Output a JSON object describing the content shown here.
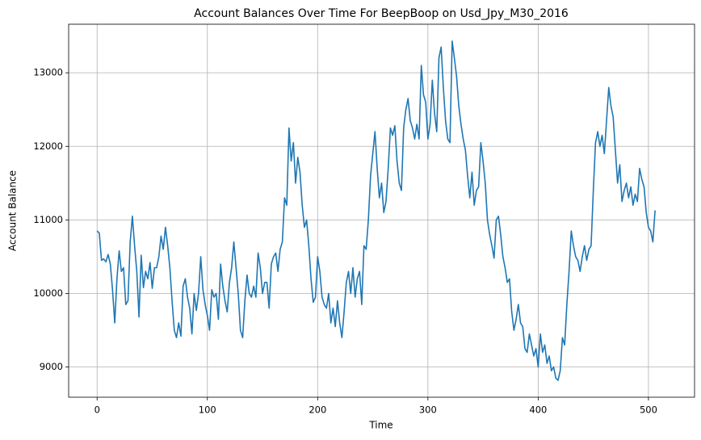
{
  "chart_data": {
    "type": "line",
    "title": "Account Balances Over Time For BeepBoop on Usd_Jpy_M30_2016",
    "x_label": "Time",
    "y_label": "Account Balance",
    "xlim": [
      -25.8,
      541.8
    ],
    "xticks": [
      0,
      100,
      200,
      300,
      400,
      500
    ],
    "ylim": [
      8590,
      13660
    ],
    "yticks": [
      9000,
      10000,
      11000,
      12000,
      13000
    ],
    "grid": true,
    "x": [
      0,
      2,
      4,
      6,
      8,
      10,
      12,
      14,
      16,
      18,
      20,
      22,
      24,
      26,
      28,
      30,
      32,
      34,
      36,
      38,
      40,
      42,
      44,
      46,
      48,
      50,
      52,
      54,
      56,
      58,
      60,
      62,
      64,
      66,
      68,
      70,
      72,
      74,
      76,
      78,
      80,
      82,
      84,
      86,
      88,
      90,
      92,
      94,
      96,
      98,
      100,
      102,
      104,
      106,
      108,
      110,
      112,
      114,
      116,
      118,
      120,
      122,
      124,
      126,
      128,
      130,
      132,
      134,
      136,
      138,
      140,
      142,
      144,
      146,
      148,
      150,
      152,
      154,
      156,
      158,
      160,
      162,
      164,
      166,
      168,
      170,
      172,
      174,
      176,
      178,
      180,
      182,
      184,
      186,
      188,
      190,
      192,
      194,
      196,
      198,
      200,
      202,
      204,
      206,
      208,
      210,
      212,
      214,
      216,
      218,
      220,
      222,
      224,
      226,
      228,
      230,
      232,
      234,
      236,
      238,
      240,
      242,
      244,
      246,
      248,
      250,
      252,
      254,
      256,
      258,
      260,
      262,
      264,
      266,
      268,
      270,
      272,
      274,
      276,
      278,
      280,
      282,
      284,
      286,
      288,
      290,
      292,
      294,
      296,
      298,
      300,
      302,
      304,
      306,
      308,
      310,
      312,
      314,
      316,
      318,
      320,
      322,
      324,
      326,
      328,
      330,
      332,
      334,
      336,
      338,
      340,
      342,
      344,
      346,
      348,
      350,
      352,
      354,
      356,
      358,
      360,
      362,
      364,
      366,
      368,
      370,
      372,
      374,
      376,
      378,
      380,
      382,
      384,
      386,
      388,
      390,
      392,
      394,
      396,
      398,
      400,
      402,
      404,
      406,
      408,
      410,
      412,
      414,
      416,
      418,
      420,
      422,
      424,
      426,
      428,
      430,
      432,
      434,
      436,
      438,
      440,
      442,
      444,
      446,
      448,
      450,
      452,
      454,
      456,
      458,
      460,
      462,
      464,
      466,
      468,
      470,
      472,
      474,
      476,
      478,
      480,
      482,
      484,
      486,
      488,
      490,
      492,
      494,
      496,
      498,
      500,
      502,
      504,
      506
    ],
    "series": [
      {
        "name": "Account Balance",
        "color": "#1f77b4",
        "values": [
          10850,
          10820,
          10450,
          10470,
          10430,
          10530,
          10400,
          10050,
          9600,
          10200,
          10580,
          10300,
          10350,
          9850,
          9900,
          10700,
          11050,
          10650,
          10300,
          9680,
          10520,
          10080,
          10300,
          10200,
          10420,
          10070,
          10350,
          10350,
          10500,
          10780,
          10600,
          10900,
          10650,
          10350,
          9900,
          9500,
          9400,
          9600,
          9420,
          10100,
          10200,
          9950,
          9800,
          9450,
          10000,
          9770,
          10000,
          10500,
          10050,
          9850,
          9700,
          9500,
          10050,
          9950,
          10000,
          9650,
          10400,
          10100,
          9900,
          9750,
          10150,
          10350,
          10700,
          10350,
          10000,
          9500,
          9400,
          9900,
          10250,
          10000,
          9950,
          10100,
          9950,
          10550,
          10350,
          10000,
          10150,
          10150,
          9800,
          10400,
          10500,
          10550,
          10300,
          10600,
          10700,
          11300,
          11200,
          12250,
          11800,
          12050,
          11500,
          11850,
          11650,
          11200,
          10900,
          11000,
          10650,
          10200,
          9880,
          9950,
          10500,
          10300,
          9950,
          9850,
          9800,
          10000,
          9600,
          9800,
          9550,
          9900,
          9600,
          9400,
          9750,
          10150,
          10300,
          10000,
          10350,
          9950,
          10200,
          10300,
          9850,
          10650,
          10600,
          11000,
          11600,
          11900,
          12200,
          11700,
          11300,
          11500,
          11100,
          11250,
          11700,
          12250,
          12150,
          12280,
          11800,
          11500,
          11400,
          12250,
          12500,
          12650,
          12350,
          12250,
          12100,
          12300,
          12100,
          13100,
          12700,
          12600,
          12100,
          12300,
          12900,
          12450,
          12200,
          13200,
          13350,
          12800,
          12350,
          12100,
          12050,
          13430,
          13200,
          12950,
          12550,
          12300,
          12100,
          11950,
          11600,
          11300,
          11650,
          11200,
          11400,
          11450,
          12050,
          11800,
          11500,
          11000,
          10800,
          10650,
          10480,
          11000,
          11050,
          10800,
          10500,
          10350,
          10150,
          10200,
          9750,
          9500,
          9650,
          9850,
          9600,
          9550,
          9250,
          9200,
          9450,
          9300,
          9150,
          9250,
          9000,
          9450,
          9200,
          9300,
          9050,
          9150,
          8950,
          9000,
          8850,
          8820,
          8950,
          9400,
          9300,
          9850,
          10300,
          10850,
          10650,
          10500,
          10450,
          10300,
          10500,
          10650,
          10450,
          10600,
          10650,
          11400,
          12050,
          12200,
          12000,
          12150,
          11900,
          12350,
          12800,
          12550,
          12400,
          11950,
          11500,
          11750,
          11250,
          11400,
          11500,
          11300,
          11450,
          11200,
          11350,
          11250,
          11700,
          11550,
          11450,
          11100,
          10900,
          10850,
          10700,
          11130
        ]
      }
    ]
  }
}
